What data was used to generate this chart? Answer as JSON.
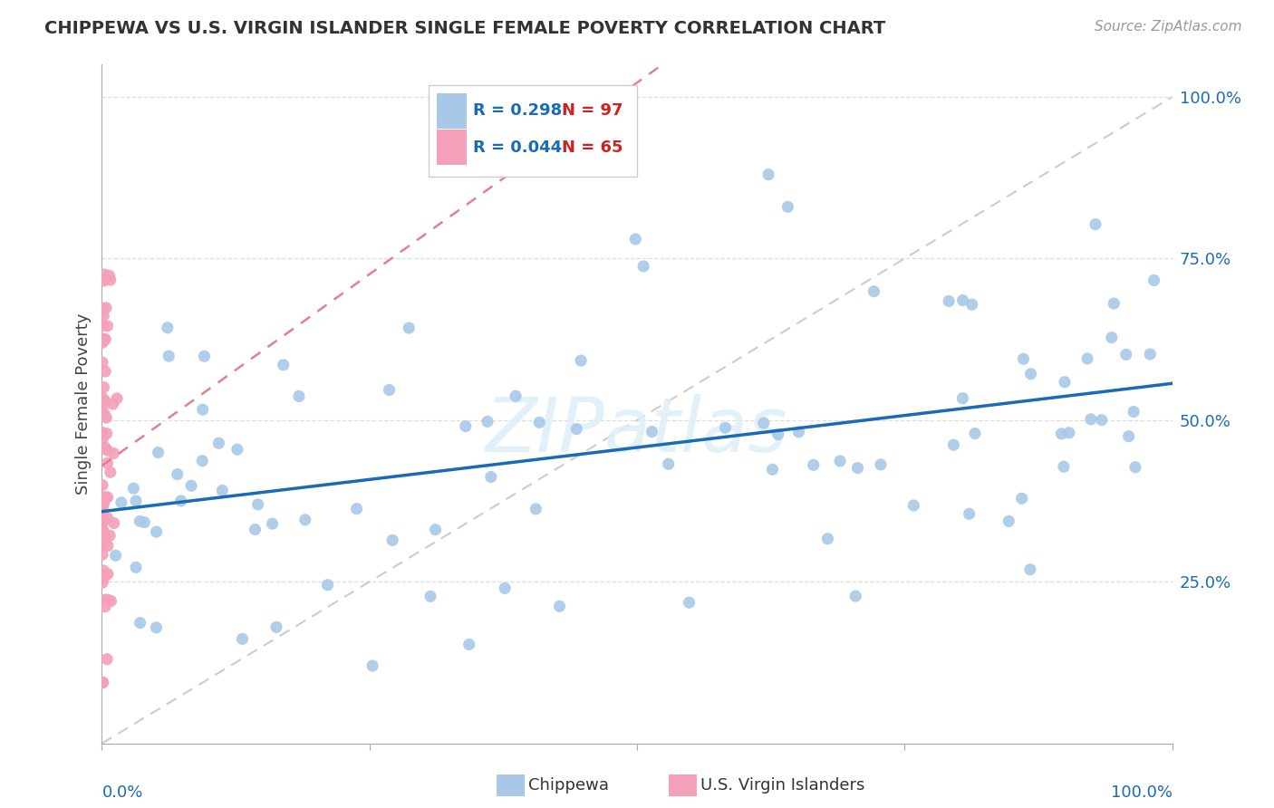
{
  "title": "CHIPPEWA VS U.S. VIRGIN ISLANDER SINGLE FEMALE POVERTY CORRELATION CHART",
  "source": "Source: ZipAtlas.com",
  "ylabel": "Single Female Poverty",
  "chippewa_R": 0.298,
  "chippewa_N": 97,
  "virgin_R": 0.044,
  "virgin_N": 65,
  "chippewa_color": "#a8c8e8",
  "virgin_color": "#f4a0b8",
  "trendline_chippewa_color": "#1a6bb5",
  "trendline_virgin_color": "#e08090",
  "diagonal_color": "#cccccc",
  "watermark_color": "#ddeeff",
  "legend_R_color": "#1a6bb5",
  "legend_N_color": "#cc2222",
  "ytick_color": "#1a6bb5",
  "xtick_color": "#1a6bb5",
  "background_color": "#ffffff",
  "grid_color": "#dddddd"
}
